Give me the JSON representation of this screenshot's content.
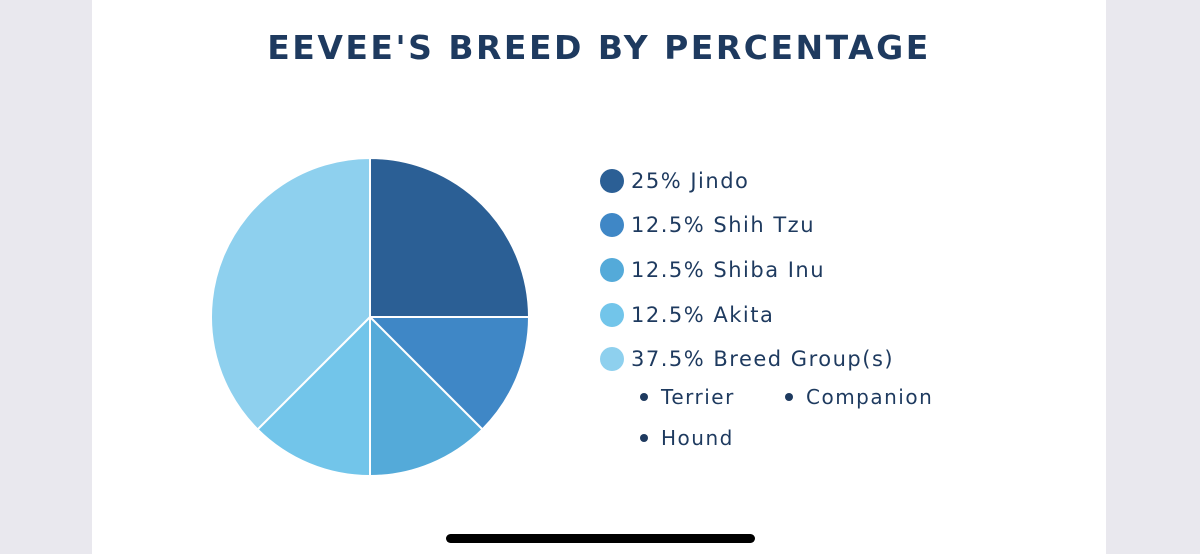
{
  "chart_data": {
    "type": "pie",
    "title": "EEVEE'S BREED BY PERCENTAGE",
    "slices": [
      {
        "label": "25% Jindo",
        "value": 25,
        "color": "#2b5f95"
      },
      {
        "label": "12.5% Shih Tzu",
        "value": 12.5,
        "color": "#3f87c6"
      },
      {
        "label": "12.5% Shiba Inu",
        "value": 12.5,
        "color": "#54aad9"
      },
      {
        "label": "12.5% Akita",
        "value": 12.5,
        "color": "#72c5ea"
      },
      {
        "label": "37.5% Breed Group(s)",
        "value": 37.5,
        "color": "#8ed0ee"
      }
    ],
    "breed_groups": [
      "Terrier",
      "Companion",
      "Hound"
    ],
    "legend_position": "right"
  },
  "colors": {
    "text": "#1e3a5f",
    "background": "#e9e8ee",
    "card": "#ffffff"
  }
}
